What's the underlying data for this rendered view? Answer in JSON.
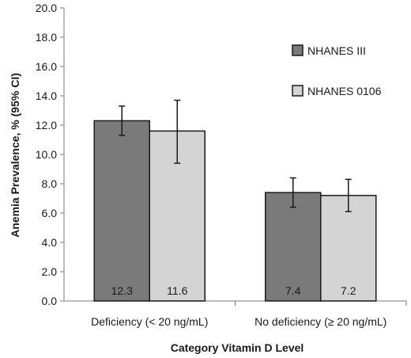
{
  "chart_data": {
    "type": "bar",
    "title": "",
    "xlabel": "Category Vitamin D Level",
    "ylabel": "Anemia Prevalence, % (95% CI)",
    "ylim": [
      0,
      20
    ],
    "yticks": [
      "0.0",
      "2.0",
      "4.0",
      "6.0",
      "8.0",
      "10.0",
      "12.0",
      "14.0",
      "16.0",
      "18.0",
      "20.0"
    ],
    "categories": [
      "Deficiency (< 20 ng/mL)",
      "No deficiency (≥ 20 ng/mL)"
    ],
    "series": [
      {
        "name": "NHANES III",
        "color": "#7a7a7a",
        "values": [
          12.3,
          7.4
        ],
        "labels": [
          "12.3",
          "7.4"
        ],
        "ci_low": [
          11.3,
          6.4
        ],
        "ci_high": [
          13.3,
          8.4
        ]
      },
      {
        "name": "NHANES 0106",
        "color": "#d4d4d4",
        "values": [
          11.6,
          7.2
        ],
        "labels": [
          "11.6",
          "7.2"
        ],
        "ci_low": [
          9.4,
          6.1
        ],
        "ci_high": [
          13.7,
          8.3
        ]
      }
    ],
    "legend_position": "top-right",
    "grid": false
  }
}
